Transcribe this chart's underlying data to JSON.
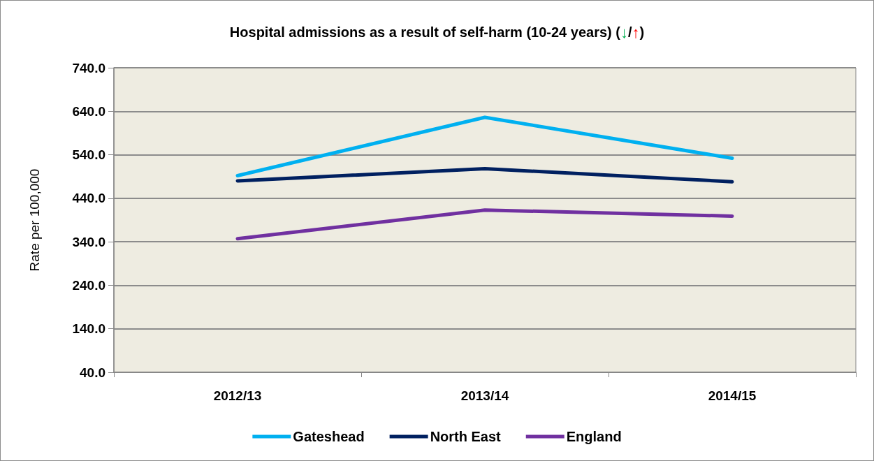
{
  "chart_data": {
    "type": "line",
    "title": "Hospital admissions as a result of self-harm (10-24 years) (↓/↑)",
    "ylabel": "Rate per 100,000",
    "categories": [
      "2012/13",
      "2013/14",
      "2014/15"
    ],
    "series": [
      {
        "name": "Gateshead",
        "color": "#00b0f0",
        "values": [
          492,
          626,
          532
        ]
      },
      {
        "name": "North East",
        "color": "#002060",
        "values": [
          480,
          508,
          478
        ]
      },
      {
        "name": "England",
        "color": "#7030a0",
        "values": [
          347,
          413,
          399
        ]
      }
    ],
    "ylim": [
      40,
      740
    ],
    "yticks": [
      {
        "value": 40,
        "label": "40.0"
      },
      {
        "value": 140,
        "label": "140.0"
      },
      {
        "value": 240,
        "label": "240.0"
      },
      {
        "value": 340,
        "label": "340.0"
      },
      {
        "value": 440,
        "label": "440.0"
      },
      {
        "value": 540,
        "label": "540.0"
      },
      {
        "value": 640,
        "label": "640.0"
      },
      {
        "value": 740,
        "label": "740.0"
      }
    ],
    "grid": "y",
    "legend": "bottom",
    "marker": "none",
    "line_style": "solid"
  }
}
